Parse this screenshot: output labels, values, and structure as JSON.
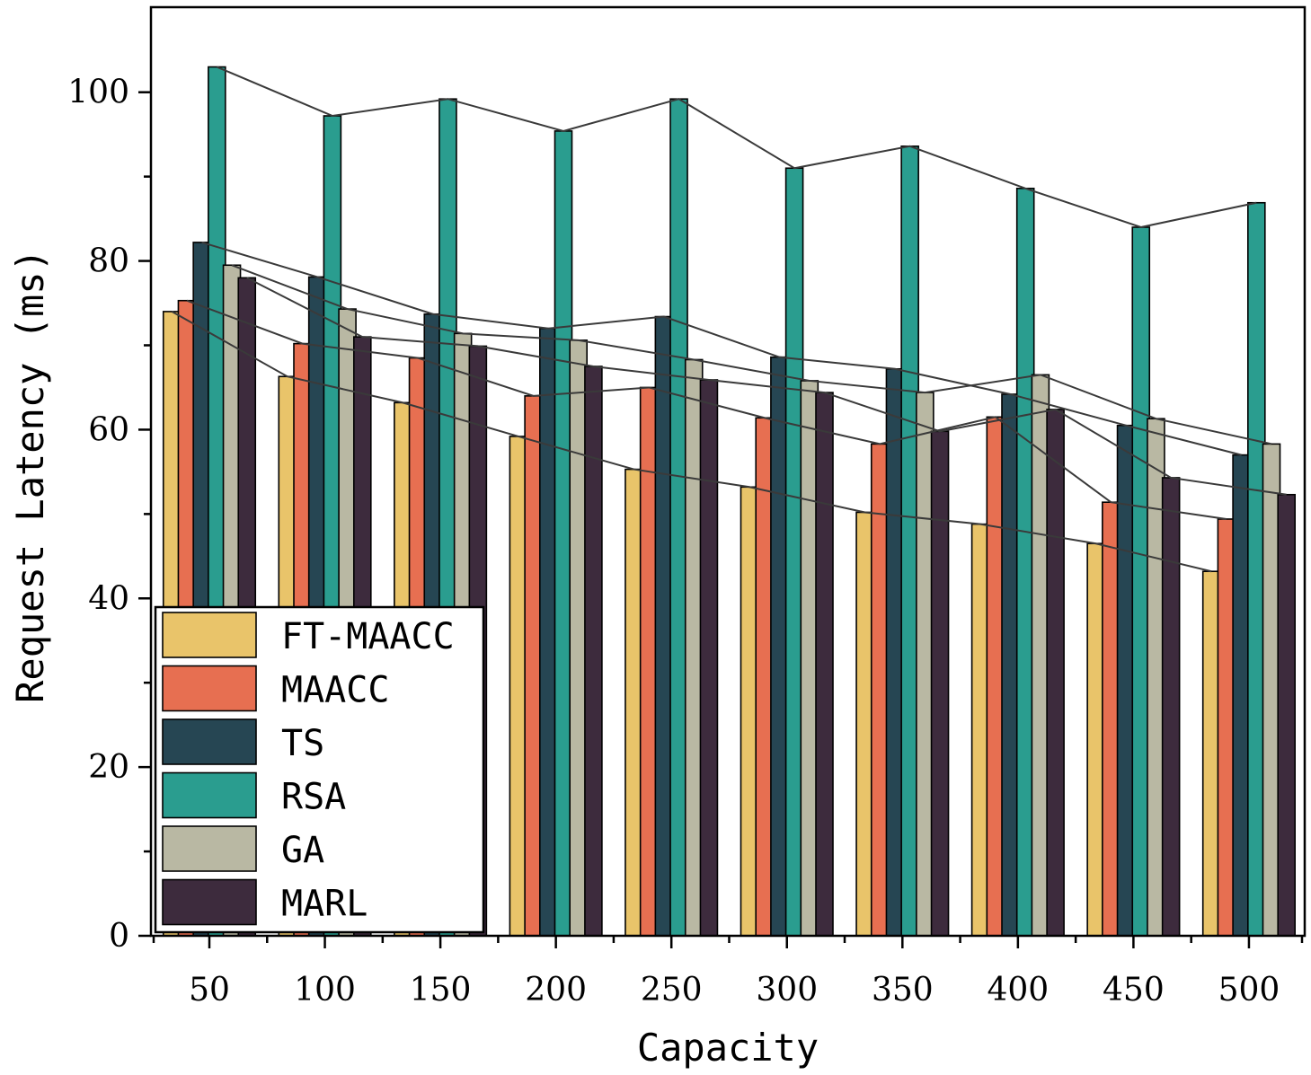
{
  "chart_data": {
    "type": "bar",
    "title": "",
    "xlabel": "Capacity",
    "ylabel": "Request Latency (ms)",
    "ylim": [
      0,
      110
    ],
    "yticks": [
      0,
      20,
      40,
      60,
      80,
      100
    ],
    "categories": [
      "50",
      "100",
      "150",
      "200",
      "250",
      "300",
      "350",
      "400",
      "450",
      "500"
    ],
    "legend_position": "bottom-left",
    "series": [
      {
        "name": "FT-MAACC",
        "color": "#E9C46A",
        "values": [
          74.0,
          66.3,
          63.2,
          59.2,
          55.3,
          53.2,
          50.2,
          48.8,
          46.5,
          43.2
        ]
      },
      {
        "name": "MAACC",
        "color": "#E76F51",
        "values": [
          75.3,
          70.2,
          68.5,
          64.0,
          65.0,
          61.4,
          58.3,
          61.5,
          51.4,
          49.4
        ]
      },
      {
        "name": "TS",
        "color": "#264653",
        "values": [
          82.2,
          78.1,
          73.7,
          72.0,
          73.4,
          68.6,
          67.2,
          64.2,
          60.5,
          57.0
        ]
      },
      {
        "name": "RSA",
        "color": "#2A9D8F",
        "values": [
          103.0,
          97.2,
          99.2,
          95.4,
          99.2,
          91.0,
          93.6,
          88.6,
          84.0,
          86.9
        ]
      },
      {
        "name": "GA",
        "color": "#B9B8A3",
        "values": [
          79.5,
          74.3,
          71.4,
          70.6,
          68.3,
          65.8,
          64.4,
          66.5,
          61.3,
          58.3
        ]
      },
      {
        "name": "MARL",
        "color": "#3D2B3D",
        "values": [
          78.0,
          71.0,
          69.9,
          67.5,
          65.9,
          64.4,
          59.8,
          62.4,
          54.3,
          52.3
        ]
      }
    ]
  }
}
